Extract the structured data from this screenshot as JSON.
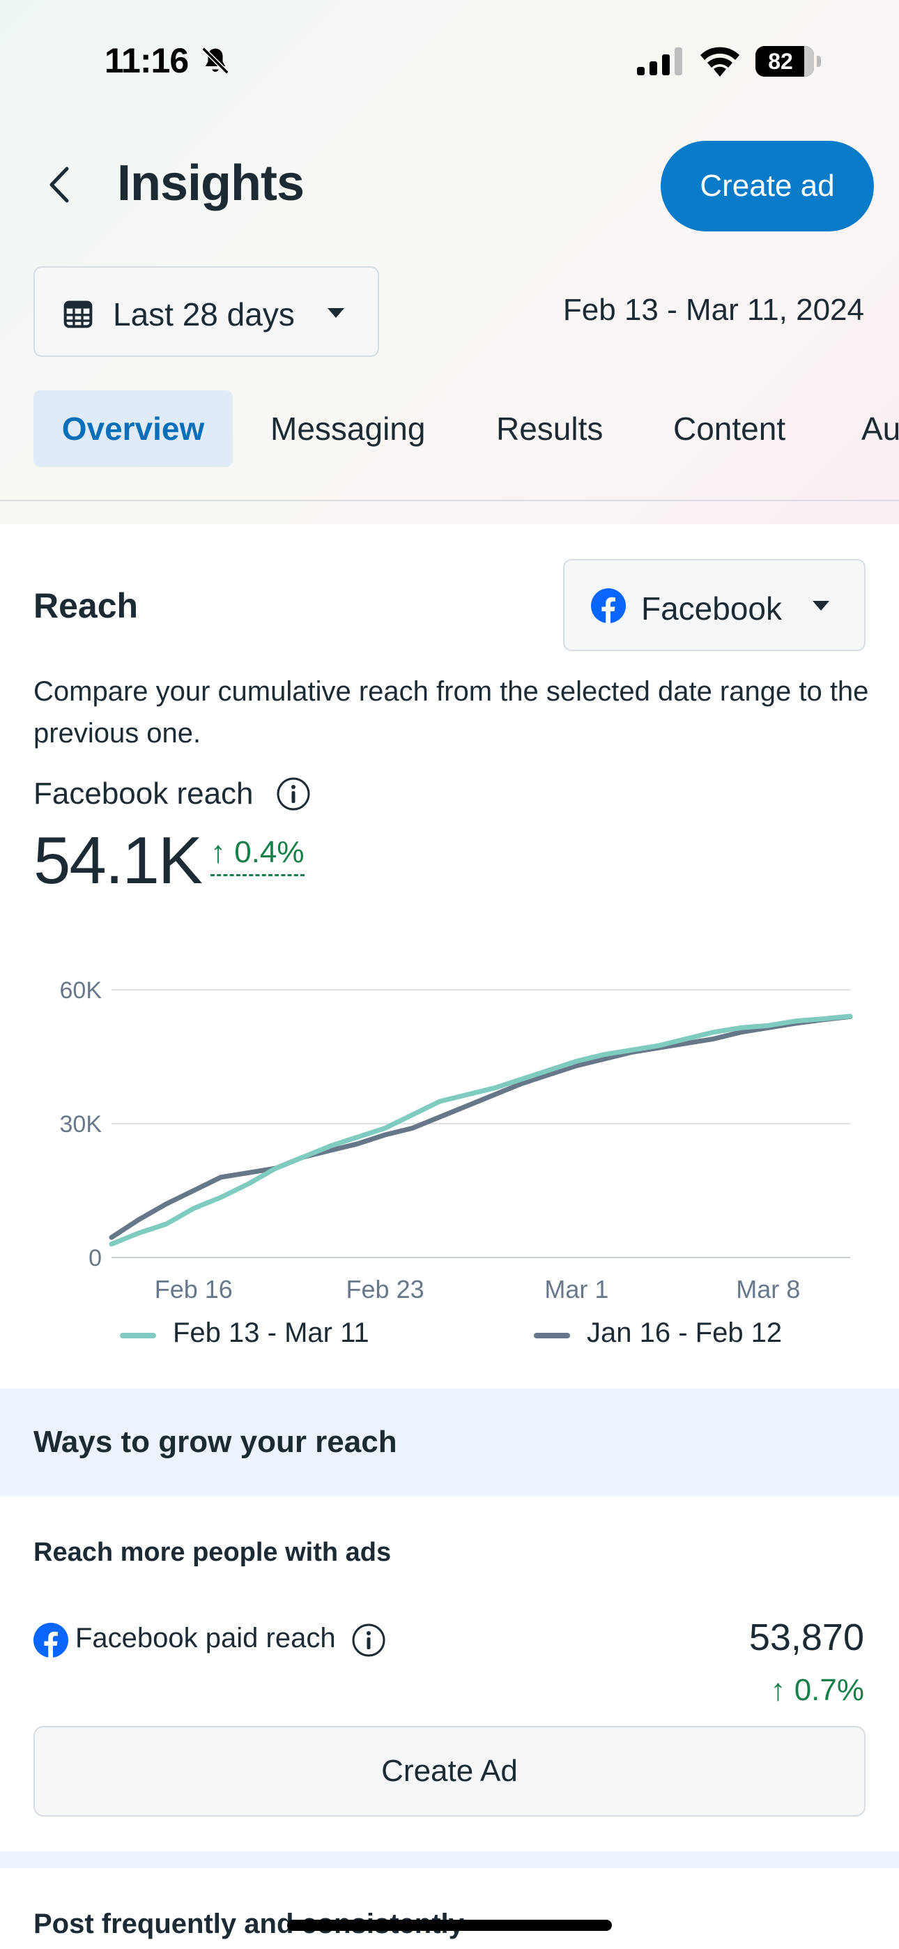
{
  "status_bar": {
    "time": "11:16",
    "battery": "82"
  },
  "header": {
    "title": "Insights",
    "create_ad_label": "Create ad"
  },
  "filters": {
    "date_preset": "Last 28 days",
    "date_range": "Feb 13 - Mar 11, 2024"
  },
  "tabs": [
    {
      "label": "Overview",
      "active": true
    },
    {
      "label": "Messaging",
      "active": false
    },
    {
      "label": "Results",
      "active": false
    },
    {
      "label": "Content",
      "active": false
    },
    {
      "label": "Au",
      "active": false
    }
  ],
  "reach": {
    "title": "Reach",
    "platform": "Facebook",
    "description": "Compare your cumulative reach from the selected date range to the previous one.",
    "metric_label": "Facebook reach",
    "value": "54.1K",
    "delta": "↑ 0.4%"
  },
  "chart_data": {
    "type": "line",
    "x": [
      "Feb 13",
      "Feb 14",
      "Feb 15",
      "Feb 16",
      "Feb 17",
      "Feb 18",
      "Feb 19",
      "Feb 20",
      "Feb 21",
      "Feb 22",
      "Feb 23",
      "Feb 24",
      "Feb 25",
      "Feb 26",
      "Feb 27",
      "Feb 28",
      "Feb 29",
      "Mar 1",
      "Mar 2",
      "Mar 3",
      "Mar 4",
      "Mar 5",
      "Mar 6",
      "Mar 7",
      "Mar 8",
      "Mar 9",
      "Mar 10",
      "Mar 11"
    ],
    "x_ticks": [
      "Feb 16",
      "Feb 23",
      "Mar 1",
      "Mar 8"
    ],
    "y_ticks": [
      "0",
      "30K",
      "60K"
    ],
    "ylim": [
      0,
      60000
    ],
    "grid": true,
    "legend_position": "bottom",
    "series": [
      {
        "name": "Feb 13 - Mar 11",
        "color": "#80cbc0",
        "values": [
          3000,
          5500,
          7500,
          11000,
          13500,
          16500,
          20000,
          22500,
          25000,
          27000,
          29000,
          32000,
          35000,
          36500,
          38000,
          40000,
          42000,
          44000,
          45500,
          46500,
          47500,
          49000,
          50500,
          51500,
          52000,
          53000,
          53500,
          54100
        ]
      },
      {
        "name": "Jan 16 - Feb 12",
        "color": "#67778a",
        "values": [
          4500,
          8500,
          12000,
          15000,
          18000,
          19000,
          20000,
          22500,
          24000,
          25500,
          27500,
          29000,
          31500,
          34000,
          36500,
          39000,
          41000,
          43000,
          44500,
          46000,
          47000,
          48000,
          49000,
          50500,
          51500,
          52500,
          53300,
          54000
        ]
      }
    ]
  },
  "grow": {
    "title": "Ways to grow your reach",
    "ads_title": "Reach more people with ads",
    "paid_label": "Facebook paid reach",
    "paid_value": "53,870",
    "paid_delta": "↑ 0.7%",
    "create_ad_label": "Create Ad",
    "post_title": "Post frequently and consistently"
  },
  "colors": {
    "primary": "#0a7bc9",
    "positive": "#17804a",
    "current_series": "#80cbc0",
    "previous_series": "#67778a"
  },
  "icons": [
    "back-chevron-icon",
    "bell-off-icon",
    "signal-icon",
    "wifi-icon",
    "calendar-icon",
    "caret-down-icon",
    "facebook-icon",
    "info-icon"
  ]
}
